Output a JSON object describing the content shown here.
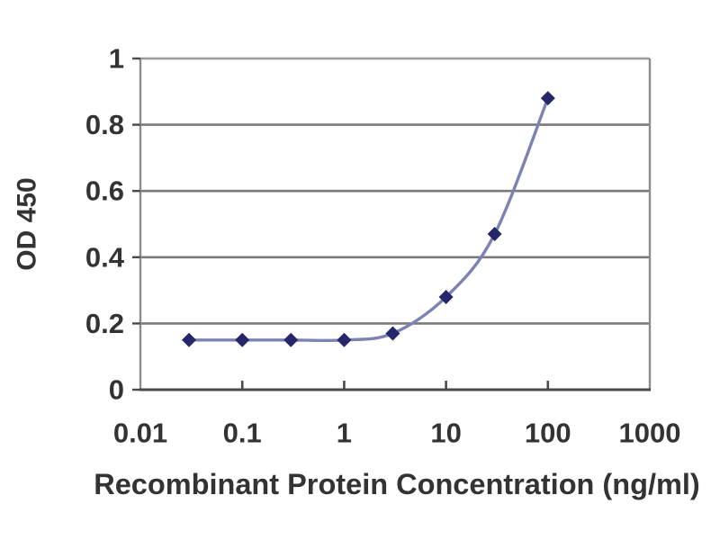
{
  "chart_data": {
    "type": "line",
    "title": "",
    "xlabel": "Recombinant Protein Concentration (ng/ml)",
    "ylabel": "OD 450",
    "x_scale": "log",
    "xlim": [
      0.01,
      1000
    ],
    "ylim": [
      0,
      1
    ],
    "x": [
      0.03,
      0.1,
      0.3,
      1,
      3,
      10,
      30,
      100
    ],
    "y": [
      0.15,
      0.15,
      0.15,
      0.15,
      0.17,
      0.28,
      0.47,
      0.88
    ],
    "x_ticks": [
      0.01,
      0.1,
      1,
      10,
      100,
      1000
    ],
    "x_tick_labels": [
      "0.01",
      "0.1",
      "1",
      "10",
      "100",
      "1000"
    ],
    "y_ticks": [
      0,
      0.2,
      0.4,
      0.6,
      0.8,
      1
    ],
    "y_tick_labels": [
      "0",
      "0.2",
      "0.4",
      "0.6",
      "0.8",
      "1"
    ],
    "grid": "horizontal",
    "legend": "none",
    "marker": "diamond",
    "line_style": "smooth",
    "colors": {
      "line": "#7b82b4",
      "marker": "#26266b",
      "grid": "#7a7a7a",
      "grid_top": "#9a9a9a",
      "axis": "#4a4a4a",
      "border": "#8c8c8c",
      "text": "#333333",
      "background": "#ffffff"
    }
  }
}
